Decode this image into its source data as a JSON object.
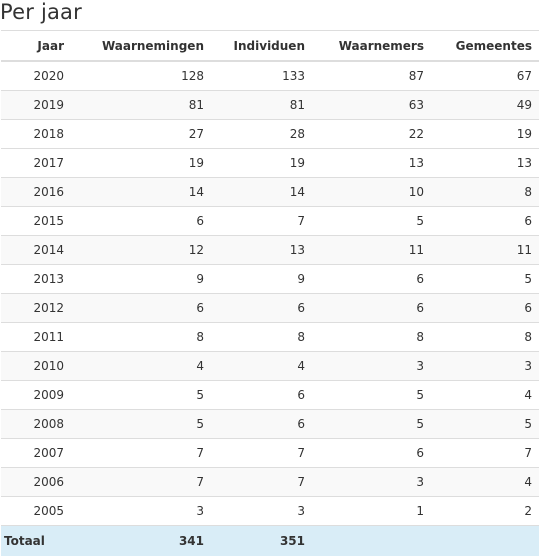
{
  "page_title": "Per jaar",
  "table": {
    "headers": [
      "Jaar",
      "Waarnemingen",
      "Individuen",
      "Waarnemers",
      "Gemeentes"
    ],
    "rows": [
      [
        "2020",
        "128",
        "133",
        "87",
        "67"
      ],
      [
        "2019",
        "81",
        "81",
        "63",
        "49"
      ],
      [
        "2018",
        "27",
        "28",
        "22",
        "19"
      ],
      [
        "2017",
        "19",
        "19",
        "13",
        "13"
      ],
      [
        "2016",
        "14",
        "14",
        "10",
        "8"
      ],
      [
        "2015",
        "6",
        "7",
        "5",
        "6"
      ],
      [
        "2014",
        "12",
        "13",
        "11",
        "11"
      ],
      [
        "2013",
        "9",
        "9",
        "6",
        "5"
      ],
      [
        "2012",
        "6",
        "6",
        "6",
        "6"
      ],
      [
        "2011",
        "8",
        "8",
        "8",
        "8"
      ],
      [
        "2010",
        "4",
        "4",
        "3",
        "3"
      ],
      [
        "2009",
        "5",
        "6",
        "5",
        "4"
      ],
      [
        "2008",
        "5",
        "6",
        "5",
        "5"
      ],
      [
        "2007",
        "7",
        "7",
        "6",
        "7"
      ],
      [
        "2006",
        "7",
        "7",
        "3",
        "4"
      ],
      [
        "2005",
        "3",
        "3",
        "1",
        "2"
      ]
    ],
    "totals": {
      "label": "Totaal",
      "waarnemingen": "341",
      "individuen": "351",
      "waarnemers": "",
      "gemeentes": ""
    }
  },
  "colors": {
    "total_row_bg": "#d9edf7",
    "stripe_bg": "#f9f9f9",
    "border": "#dddddd"
  }
}
